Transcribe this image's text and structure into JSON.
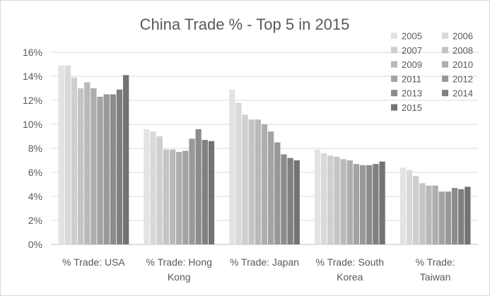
{
  "chart_data": {
    "type": "bar",
    "title": "China Trade % - Top 5 in 2015",
    "categories": [
      [
        "% Trade: USA"
      ],
      [
        "% Trade: Hong",
        "Kong"
      ],
      [
        "% Trade: Japan"
      ],
      [
        "% Trade: South",
        "Korea"
      ],
      [
        "% Trade:",
        "Taiwan"
      ]
    ],
    "ylim": [
      0,
      0.16
    ],
    "yticks": [
      "0%",
      "2%",
      "4%",
      "6%",
      "8%",
      "10%",
      "12%",
      "14%",
      "16%"
    ],
    "grid": true,
    "legend_position": "top-right",
    "series": [
      {
        "name": "2005",
        "color": "#e3e3e3",
        "values": [
          0.149,
          0.096,
          0.129,
          0.079,
          0.064
        ]
      },
      {
        "name": "2006",
        "color": "#d9d9d9",
        "values": [
          0.149,
          0.094,
          0.118,
          0.076,
          0.062
        ]
      },
      {
        "name": "2007",
        "color": "#cfcfcf",
        "values": [
          0.139,
          0.09,
          0.108,
          0.074,
          0.057
        ]
      },
      {
        "name": "2008",
        "color": "#c4c4c4",
        "values": [
          0.13,
          0.079,
          0.104,
          0.073,
          0.051
        ]
      },
      {
        "name": "2009",
        "color": "#b9b9b9",
        "values": [
          0.135,
          0.079,
          0.104,
          0.071,
          0.049
        ]
      },
      {
        "name": "2010",
        "color": "#aeaeae",
        "values": [
          0.13,
          0.077,
          0.1,
          0.07,
          0.049
        ]
      },
      {
        "name": "2011",
        "color": "#a3a3a3",
        "values": [
          0.123,
          0.078,
          0.094,
          0.067,
          0.044
        ]
      },
      {
        "name": "2012",
        "color": "#989898",
        "values": [
          0.125,
          0.088,
          0.085,
          0.066,
          0.044
        ]
      },
      {
        "name": "2013",
        "color": "#8c8c8c",
        "values": [
          0.125,
          0.096,
          0.075,
          0.066,
          0.047
        ]
      },
      {
        "name": "2014",
        "color": "#808080",
        "values": [
          0.129,
          0.087,
          0.072,
          0.067,
          0.046
        ]
      },
      {
        "name": "2015",
        "color": "#737373",
        "values": [
          0.141,
          0.086,
          0.07,
          0.069,
          0.048
        ]
      }
    ]
  }
}
